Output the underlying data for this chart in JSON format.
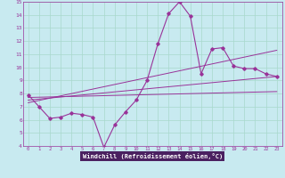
{
  "xlabel": "Windchill (Refroidissement éolien,°C)",
  "bg_color": "#c8eaf0",
  "line_color": "#993399",
  "axis_bg": "#5a3a7a",
  "grid_color": "#a8d8cc",
  "xlim": [
    -0.5,
    23.5
  ],
  "ylim": [
    4,
    15
  ],
  "xticks": [
    0,
    1,
    2,
    3,
    4,
    5,
    6,
    7,
    8,
    9,
    10,
    11,
    12,
    13,
    14,
    15,
    16,
    17,
    18,
    19,
    20,
    21,
    22,
    23
  ],
  "yticks": [
    4,
    5,
    6,
    7,
    8,
    9,
    10,
    11,
    12,
    13,
    14,
    15
  ],
  "series_x": [
    0,
    1,
    2,
    3,
    4,
    5,
    6,
    7,
    8,
    9,
    10,
    11,
    12,
    13,
    14,
    15,
    16,
    17,
    18,
    19,
    20,
    21,
    22,
    23
  ],
  "series_y": [
    7.9,
    7.0,
    6.1,
    6.2,
    6.5,
    6.4,
    6.2,
    3.9,
    5.6,
    6.6,
    7.5,
    9.0,
    11.8,
    14.1,
    15.0,
    13.9,
    9.5,
    11.4,
    11.5,
    10.1,
    9.9,
    9.9,
    9.5,
    9.3
  ],
  "line1_x": [
    0,
    23
  ],
  "line1_y": [
    7.5,
    9.3
  ],
  "line2_x": [
    0,
    23
  ],
  "line2_y": [
    7.3,
    11.3
  ],
  "line3_x": [
    0,
    23
  ],
  "line3_y": [
    7.7,
    8.15
  ]
}
